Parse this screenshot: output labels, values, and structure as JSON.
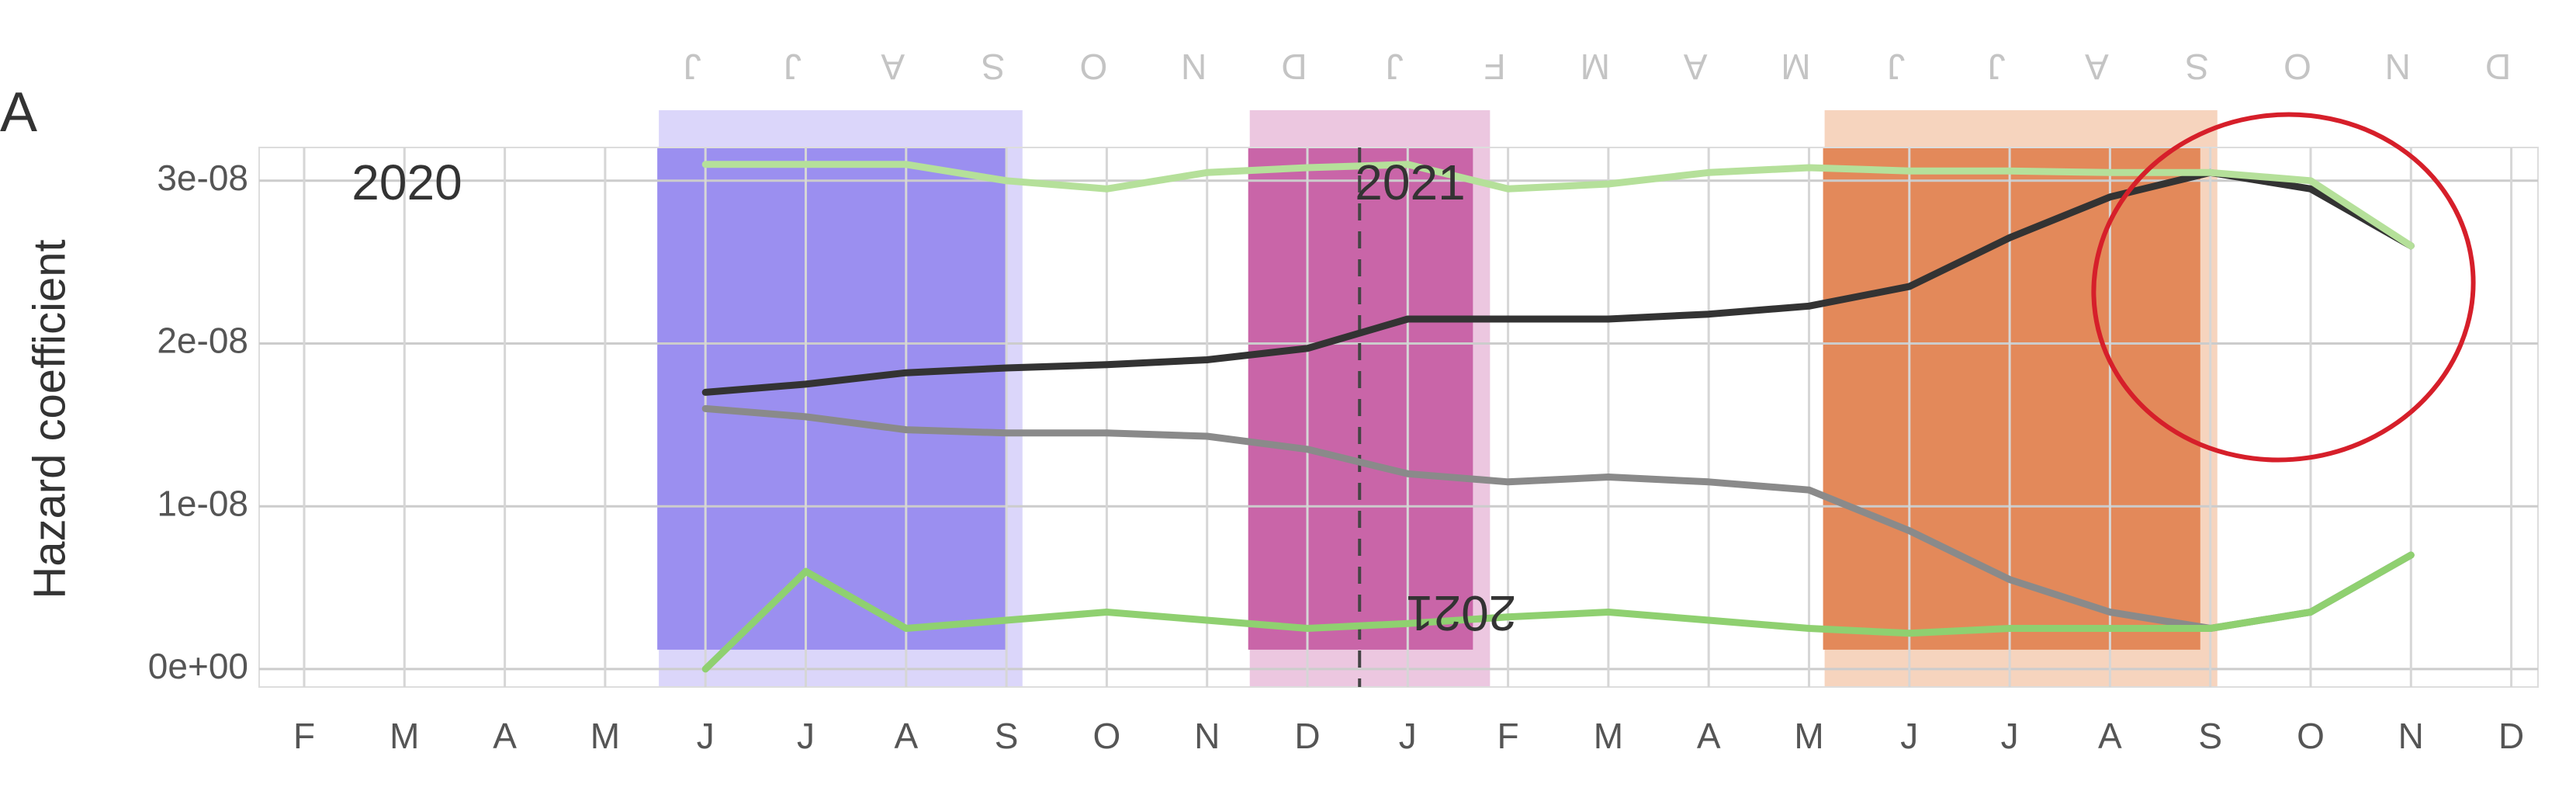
{
  "panel_label": "A",
  "chart_data": {
    "type": "line",
    "y_label": "Hazard coefficient",
    "annotations": [
      {
        "text": "2020",
        "at": 1
      },
      {
        "text": "2021",
        "at": 11
      }
    ],
    "categories": [
      "F",
      "M",
      "A",
      "M",
      "J",
      "J",
      "A",
      "S",
      "O",
      "N",
      "D",
      "J",
      "F",
      "M",
      "A",
      "M",
      "J",
      "J",
      "A",
      "S",
      "O",
      "N",
      "D"
    ],
    "ylim": [
      -1.1e-09,
      3.204e-08
    ],
    "yticks": [
      {
        "value": 0,
        "label": "0e+00"
      },
      {
        "value": 1e-08,
        "label": "1e-08"
      },
      {
        "value": 2e-08,
        "label": "2e-08"
      },
      {
        "value": 3e-08,
        "label": "3e-08"
      }
    ],
    "grid": true,
    "shaded_periods": [
      {
        "from": 3.52,
        "to": 6.99,
        "color": "#9b8ff0",
        "halo": "#cfc8f8"
      },
      {
        "from": 9.41,
        "to": 11.65,
        "color": "#c965a8",
        "halo": "#e6b4d5"
      },
      {
        "from": 15.14,
        "to": 18.9,
        "color": "#e3895a",
        "halo": "#f3c6a8"
      }
    ],
    "vline": 10.52,
    "series": [
      {
        "color": "#333333",
        "values": [
          null,
          null,
          null,
          null,
          1.7e-08,
          1.75e-08,
          1.82e-08,
          1.85e-08,
          1.87e-08,
          1.9e-08,
          1.97e-08,
          2.15e-08,
          2.15e-08,
          2.15e-08,
          2.18e-08,
          2.23e-08,
          2.35e-08,
          2.65e-08,
          2.9e-08,
          3.05e-08,
          2.95e-08,
          2.6e-08,
          null
        ]
      },
      {
        "color": "#8a8a8a",
        "values": [
          null,
          null,
          null,
          null,
          1.6e-08,
          1.55e-08,
          1.47e-08,
          1.45e-08,
          1.45e-08,
          1.43e-08,
          1.35e-08,
          1.2e-08,
          1.15e-08,
          1.18e-08,
          1.15e-08,
          1.1e-08,
          8.5e-09,
          5.5e-09,
          3.5e-09,
          2.5e-09,
          3.5e-09,
          7e-09,
          null
        ]
      },
      {
        "color": "#b5e09a",
        "values": [
          null,
          null,
          null,
          null,
          3.1e-08,
          3.1e-08,
          3.1e-08,
          3e-08,
          2.95e-08,
          3.05e-08,
          3.08e-08,
          3.1e-08,
          2.95e-08,
          2.98e-08,
          3.05e-08,
          3.08e-08,
          3.06e-08,
          3.06e-08,
          3.05e-08,
          3.05e-08,
          3e-08,
          2.6e-08,
          null
        ]
      },
      {
        "color": "#8fd070",
        "values": [
          null,
          null,
          null,
          null,
          0,
          6e-09,
          2.5e-09,
          3e-09,
          3.5e-09,
          3e-09,
          2.5e-09,
          2.8e-09,
          3.2e-09,
          3.5e-09,
          3e-09,
          2.5e-09,
          2.2e-09,
          2.5e-09,
          2.5e-09,
          2.5e-09,
          3.5e-09,
          7e-09,
          null
        ]
      }
    ]
  }
}
